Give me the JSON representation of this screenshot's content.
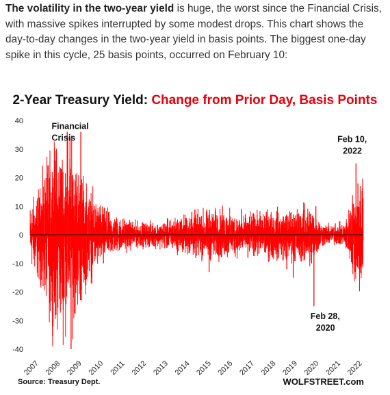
{
  "article": {
    "intro_bold": "The volatility in the two-year yield",
    "intro_rest": " is huge, the worst since the Financial Crisis, with massive spikes interrupted by some modest drops. This chart shows the day-to-day changes in the two-year yield in basis points. The biggest one-day spike in this cycle, 25 basis points, occurred on February 10:"
  },
  "chart_data": {
    "type": "bar",
    "title_part1": "2-Year Treasury Yield: ",
    "title_part2": "Change from Prior Day, Basis Points",
    "xlabel": "",
    "ylabel": "",
    "ylim": [
      -40,
      40
    ],
    "yticks": [
      "40",
      "30",
      "20",
      "10",
      "0",
      "-10",
      "-20",
      "-30",
      "-40"
    ],
    "xlim": [
      2007,
      2022.45
    ],
    "xticks": [
      "2007",
      "2008",
      "2009",
      "2010",
      "2011",
      "2012",
      "2013",
      "2014",
      "2015",
      "2016",
      "2017",
      "2018",
      "2019",
      "2020",
      "2021",
      "2022"
    ],
    "series": [
      {
        "color": "#ff0000",
        "amplitude_envelope": [
          {
            "x": 2007.0,
            "amp": 5
          },
          {
            "x": 2007.5,
            "amp": 8
          },
          {
            "x": 2008.0,
            "amp": 14
          },
          {
            "x": 2008.5,
            "amp": 15
          },
          {
            "x": 2009.0,
            "amp": 14
          },
          {
            "x": 2009.5,
            "amp": 9
          },
          {
            "x": 2010.0,
            "amp": 6
          },
          {
            "x": 2010.5,
            "amp": 4
          },
          {
            "x": 2011.0,
            "amp": 3
          },
          {
            "x": 2012.0,
            "amp": 2
          },
          {
            "x": 2013.0,
            "amp": 2
          },
          {
            "x": 2014.0,
            "amp": 3
          },
          {
            "x": 2015.0,
            "amp": 4
          },
          {
            "x": 2016.0,
            "amp": 4
          },
          {
            "x": 2017.0,
            "amp": 3
          },
          {
            "x": 2018.0,
            "amp": 4
          },
          {
            "x": 2019.0,
            "amp": 4
          },
          {
            "x": 2020.0,
            "amp": 5
          },
          {
            "x": 2020.5,
            "amp": 2
          },
          {
            "x": 2021.0,
            "amp": 1.5
          },
          {
            "x": 2021.6,
            "amp": 2
          },
          {
            "x": 2022.0,
            "amp": 7
          },
          {
            "x": 2022.45,
            "amp": 10
          }
        ],
        "notable_spikes": [
          {
            "x": 2007.6,
            "y": -18
          },
          {
            "x": 2007.9,
            "y": -24
          },
          {
            "x": 2008.15,
            "y": 26
          },
          {
            "x": 2008.2,
            "y": -28
          },
          {
            "x": 2008.45,
            "y": 23
          },
          {
            "x": 2008.55,
            "y": -23
          },
          {
            "x": 2008.72,
            "y": 36
          },
          {
            "x": 2008.78,
            "y": -14
          },
          {
            "x": 2008.85,
            "y": 34
          },
          {
            "x": 2008.9,
            "y": -40
          },
          {
            "x": 2008.97,
            "y": 21
          },
          {
            "x": 2009.05,
            "y": 14
          },
          {
            "x": 2009.22,
            "y": -16
          },
          {
            "x": 2009.35,
            "y": 36
          },
          {
            "x": 2009.38,
            "y": -23
          },
          {
            "x": 2009.7,
            "y": 9
          },
          {
            "x": 2010.4,
            "y": -10
          },
          {
            "x": 2014.5,
            "y": 8
          },
          {
            "x": 2015.3,
            "y": -13
          },
          {
            "x": 2016.8,
            "y": 9
          },
          {
            "x": 2017.1,
            "y": -8
          },
          {
            "x": 2018.9,
            "y": -12
          },
          {
            "x": 2019.2,
            "y": -15
          },
          {
            "x": 2019.7,
            "y": -9
          },
          {
            "x": 2020.05,
            "y": -10
          },
          {
            "x": 2020.16,
            "y": -25
          },
          {
            "x": 2020.25,
            "y": 10
          },
          {
            "x": 2021.15,
            "y": 4
          },
          {
            "x": 2021.95,
            "y": 11
          },
          {
            "x": 2022.08,
            "y": -13
          },
          {
            "x": 2022.11,
            "y": 25
          },
          {
            "x": 2022.2,
            "y": 18
          },
          {
            "x": 2022.25,
            "y": -12
          },
          {
            "x": 2022.33,
            "y": 17
          },
          {
            "x": 2022.4,
            "y": 10
          }
        ]
      }
    ],
    "annotations": [
      {
        "lines": [
          "Financial",
          "Crisis"
        ],
        "x": 2008.0,
        "y": 37
      },
      {
        "lines": [
          "Feb 10,",
          "2022"
        ],
        "x": 2021.25,
        "y": 32.5
      },
      {
        "lines": [
          "Feb 28,",
          "2020"
        ],
        "x": 2020.0,
        "y": -29.5
      }
    ],
    "source": "Source: Treasury Dept.",
    "brand": "WOLFSTREET.com"
  }
}
